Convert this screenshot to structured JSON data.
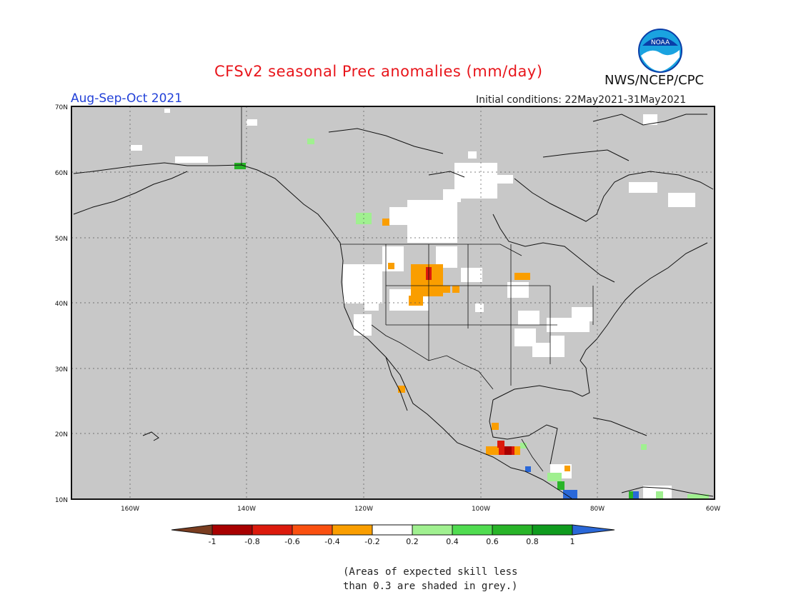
{
  "header": {
    "title": "CFSv2 seasonal Prec anomalies (mm/day)",
    "season": "Aug-Sep-Oct 2021",
    "initial_conditions": "Initial conditions: 22May2021-31May2021",
    "agency": "NWS/NCEP/CPC",
    "logo_text": "NOAA"
  },
  "map": {
    "lon_ticks": [
      "160W",
      "140W",
      "120W",
      "100W",
      "80W",
      "60W"
    ],
    "lat_ticks": [
      "70N",
      "60N",
      "50N",
      "40N",
      "30N",
      "20N",
      "10N"
    ],
    "background_color": "#c8c8c8",
    "land_color": "#ffffff"
  },
  "colorbar": {
    "labels": [
      "-1",
      "-0.8",
      "-0.6",
      "-0.4",
      "-0.2",
      "0.2",
      "0.4",
      "0.6",
      "0.8",
      "1"
    ],
    "colors": [
      "#7a3d20",
      "#a80000",
      "#dc1a0c",
      "#fa5010",
      "#fa9e00",
      "#ffffff",
      "#a0f090",
      "#50dc50",
      "#28b428",
      "#0f9b1e",
      "#2a68d8"
    ]
  },
  "note": {
    "line1": "(Areas of expected skill less",
    "line2": "than 0.3 are shaded in grey.)"
  }
}
